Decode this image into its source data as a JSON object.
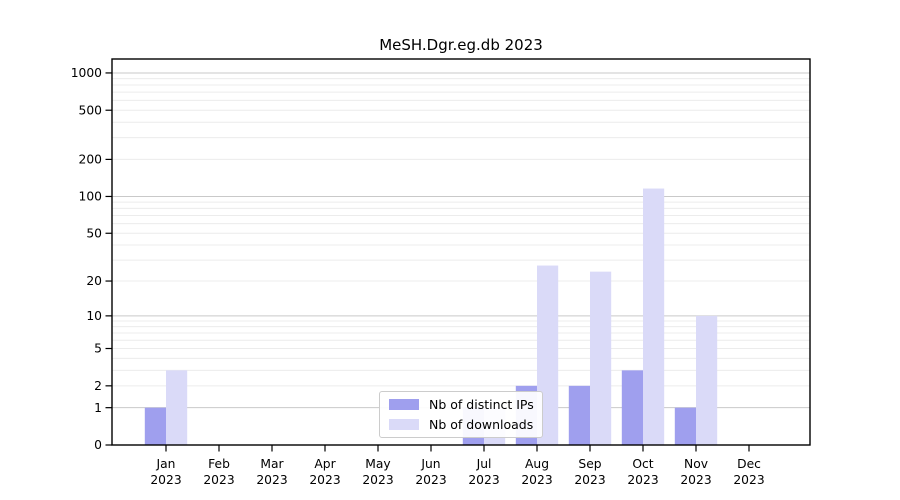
{
  "chart_data": {
    "type": "bar",
    "title": "MeSH.Dgr.eg.db 2023",
    "months": [
      "Jan",
      "Feb",
      "Mar",
      "Apr",
      "May",
      "Jun",
      "Jul",
      "Aug",
      "Sep",
      "Oct",
      "Nov",
      "Dec"
    ],
    "year": "2023",
    "series": [
      {
        "name": "Nb of distinct IPs",
        "color": "#9f9fee",
        "values": [
          1,
          0,
          0,
          0,
          0,
          0,
          1,
          2,
          2,
          3,
          1,
          0
        ]
      },
      {
        "name": "Nb of downloads",
        "color": "#dadaf8",
        "values": [
          3,
          0,
          0,
          0,
          0,
          0,
          1,
          27,
          24,
          116,
          10,
          0
        ]
      }
    ],
    "y_ticks": [
      0,
      1,
      2,
      5,
      10,
      20,
      50,
      100,
      200,
      500,
      1000
    ],
    "y_scale": "log1p",
    "ylim": [
      0,
      1300
    ],
    "grid": "major-and-minor-horizontal",
    "legend_position": "inside-lower-center",
    "grid_major_color": "#c9c9c9",
    "grid_minor_color": "#ececec",
    "axis_color": "#000000"
  }
}
